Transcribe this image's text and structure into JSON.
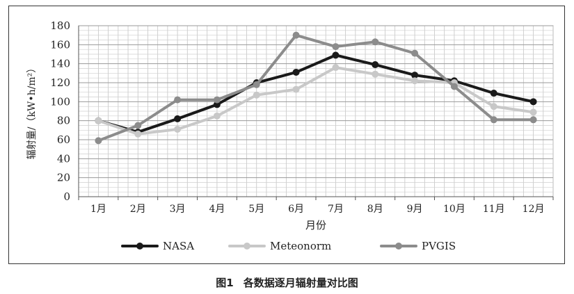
{
  "caption": {
    "number": "图1",
    "text": "各数据逐月辐射量对比图"
  },
  "chart_data": {
    "type": "line",
    "xlabel": "月份",
    "ylabel": "辐射量/（kW•h/m²）",
    "categories": [
      "1月",
      "2月",
      "3月",
      "4月",
      "5月",
      "6月",
      "7月",
      "8月",
      "9月",
      "10月",
      "11月",
      "12月"
    ],
    "ylim": [
      0,
      180
    ],
    "yticks": [
      0,
      20,
      40,
      60,
      80,
      100,
      120,
      140,
      160,
      180
    ],
    "grid": true,
    "legend_position": "bottom",
    "series": [
      {
        "name": "NASA",
        "color": "#1a1a1a",
        "values": [
          80,
          68,
          82,
          97,
          120,
          131,
          149,
          139,
          128,
          122,
          109,
          100
        ]
      },
      {
        "name": "Meteonorm",
        "color": "#c8c8c8",
        "values": [
          80,
          66,
          71,
          85,
          107,
          113,
          136,
          129,
          122,
          120,
          95,
          89
        ]
      },
      {
        "name": "PVGIS",
        "color": "#8c8c8c",
        "values": [
          59,
          75,
          102,
          102,
          118,
          170,
          158,
          163,
          151,
          116,
          81,
          81
        ]
      }
    ]
  }
}
